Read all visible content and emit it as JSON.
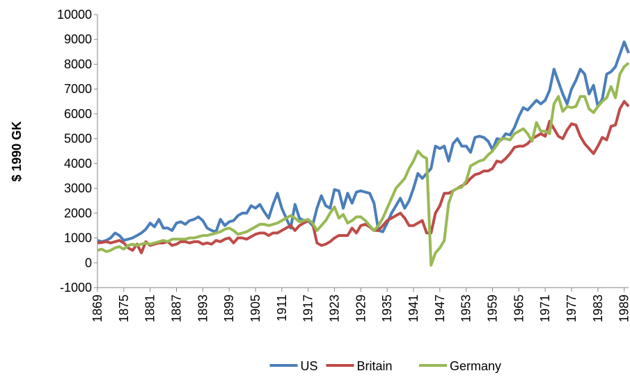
{
  "chart_data": {
    "type": "line",
    "y_label": "$ 1990 GK",
    "xlim": [
      1869,
      1990
    ],
    "xticks": [
      1869,
      1875,
      1881,
      1887,
      1893,
      1899,
      1905,
      1911,
      1917,
      1923,
      1929,
      1935,
      1941,
      1947,
      1953,
      1959,
      1965,
      1971,
      1977,
      1983,
      1989
    ],
    "ylim": [
      -1000,
      10000
    ],
    "yticks": [
      -1000,
      0,
      1000,
      2000,
      3000,
      4000,
      5000,
      6000,
      7000,
      8000,
      9000,
      10000
    ],
    "legend": "bottom",
    "x": [
      1869,
      1870,
      1871,
      1872,
      1873,
      1874,
      1875,
      1876,
      1877,
      1878,
      1879,
      1880,
      1881,
      1882,
      1883,
      1884,
      1885,
      1886,
      1887,
      1888,
      1889,
      1890,
      1891,
      1892,
      1893,
      1894,
      1895,
      1896,
      1897,
      1898,
      1899,
      1900,
      1901,
      1902,
      1903,
      1904,
      1905,
      1906,
      1907,
      1908,
      1909,
      1910,
      1911,
      1912,
      1913,
      1914,
      1915,
      1916,
      1917,
      1918,
      1919,
      1920,
      1921,
      1922,
      1923,
      1924,
      1925,
      1926,
      1927,
      1928,
      1929,
      1930,
      1931,
      1932,
      1933,
      1934,
      1935,
      1936,
      1937,
      1938,
      1939,
      1940,
      1941,
      1942,
      1943,
      1944,
      1945,
      1946,
      1947,
      1948,
      1949,
      1950,
      1951,
      1952,
      1953,
      1954,
      1955,
      1956,
      1957,
      1958,
      1959,
      1960,
      1961,
      1962,
      1963,
      1964,
      1965,
      1966,
      1967,
      1968,
      1969,
      1970,
      1971,
      1972,
      1973,
      1974,
      1975,
      1976,
      1977,
      1978,
      1979,
      1980,
      1981,
      1982,
      1983,
      1984,
      1985,
      1986,
      1987,
      1988,
      1989,
      1990
    ],
    "series": [
      {
        "name": "US",
        "color": "#4a7ebb",
        "values": [
          900,
          850,
          900,
          1000,
          1200,
          1100,
          900,
          950,
          1000,
          1100,
          1200,
          1350,
          1600,
          1450,
          1750,
          1400,
          1400,
          1300,
          1600,
          1650,
          1550,
          1700,
          1750,
          1850,
          1700,
          1400,
          1300,
          1250,
          1750,
          1500,
          1650,
          1700,
          1900,
          2000,
          2000,
          2300,
          2200,
          2350,
          2050,
          1800,
          2350,
          2800,
          2200,
          1800,
          1400,
          2350,
          1800,
          1700,
          1700,
          1500,
          2200,
          2700,
          2300,
          2200,
          2950,
          2900,
          2200,
          2800,
          2400,
          2850,
          2900,
          2850,
          2800,
          2400,
          1300,
          1250,
          1600,
          2000,
          2300,
          2600,
          2200,
          2500,
          3000,
          3600,
          3400,
          3600,
          3800,
          4700,
          4600,
          4700,
          4100,
          4800,
          5000,
          4700,
          4700,
          4450,
          5050,
          5100,
          5050,
          4900,
          4550,
          5000,
          4950,
          5200,
          5150,
          5450,
          5900,
          6250,
          6150,
          6350,
          6550,
          6400,
          6550,
          6950,
          7800,
          7300,
          6800,
          6400,
          7000,
          7350,
          7800,
          7600,
          6800,
          7150,
          6300,
          6600,
          7600,
          7700,
          7900,
          8400,
          8900,
          8450
        ]
      },
      {
        "name": "Britain",
        "color": "#be4b48",
        "values": [
          800,
          820,
          850,
          800,
          850,
          900,
          800,
          600,
          500,
          750,
          400,
          850,
          700,
          750,
          800,
          800,
          850,
          700,
          750,
          850,
          850,
          800,
          850,
          850,
          750,
          800,
          750,
          900,
          850,
          950,
          1000,
          800,
          1000,
          1000,
          950,
          1050,
          1150,
          1200,
          1200,
          1100,
          1200,
          1200,
          1300,
          1400,
          1500,
          1300,
          1500,
          1600,
          1700,
          1600,
          800,
          700,
          750,
          850,
          1000,
          1100,
          1100,
          1100,
          1400,
          1200,
          1500,
          1550,
          1450,
          1300,
          1300,
          1500,
          1700,
          1800,
          1900,
          2000,
          1800,
          1500,
          1500,
          1600,
          1700,
          1200,
          1200,
          2000,
          2300,
          2800,
          2800,
          2900,
          3000,
          3100,
          3200,
          3400,
          3550,
          3600,
          3700,
          3700,
          3800,
          4100,
          4050,
          4200,
          4400,
          4650,
          4700,
          4700,
          4800,
          5000,
          5100,
          5200,
          5100,
          5700,
          5400,
          5100,
          5000,
          5350,
          5600,
          5550,
          5100,
          4800,
          4600,
          4400,
          4700,
          5050,
          4950,
          5500,
          5550,
          6200,
          6500,
          6300
        ]
      },
      {
        "name": "Germany",
        "color": "#98b954",
        "values": [
          500,
          550,
          450,
          500,
          600,
          650,
          550,
          700,
          750,
          700,
          750,
          800,
          750,
          800,
          850,
          900,
          850,
          950,
          950,
          950,
          950,
          1000,
          1000,
          1050,
          1100,
          1100,
          1150,
          1200,
          1250,
          1350,
          1400,
          1300,
          1150,
          1200,
          1250,
          1350,
          1450,
          1550,
          1550,
          1500,
          1550,
          1600,
          1700,
          1800,
          1900,
          1800,
          1650,
          1700,
          1750,
          1600,
          1300,
          1500,
          1700,
          2000,
          2250,
          1800,
          1950,
          1600,
          1700,
          1850,
          1850,
          1700,
          1500,
          1300,
          1500,
          1800,
          2200,
          2600,
          3000,
          3200,
          3400,
          3800,
          4100,
          4500,
          4300,
          4200,
          -100,
          400,
          600,
          900,
          2400,
          2900,
          3000,
          3050,
          3300,
          3900,
          4000,
          4100,
          4150,
          4350,
          4500,
          4750,
          5000,
          5000,
          4950,
          5200,
          5300,
          5400,
          5200,
          4900,
          5650,
          5300,
          5300,
          5200,
          6400,
          6700,
          6100,
          6300,
          6250,
          6300,
          6700,
          6700,
          6200,
          6050,
          6300,
          6500,
          6650,
          7100,
          6650,
          7600,
          7900,
          8050
        ]
      }
    ]
  }
}
